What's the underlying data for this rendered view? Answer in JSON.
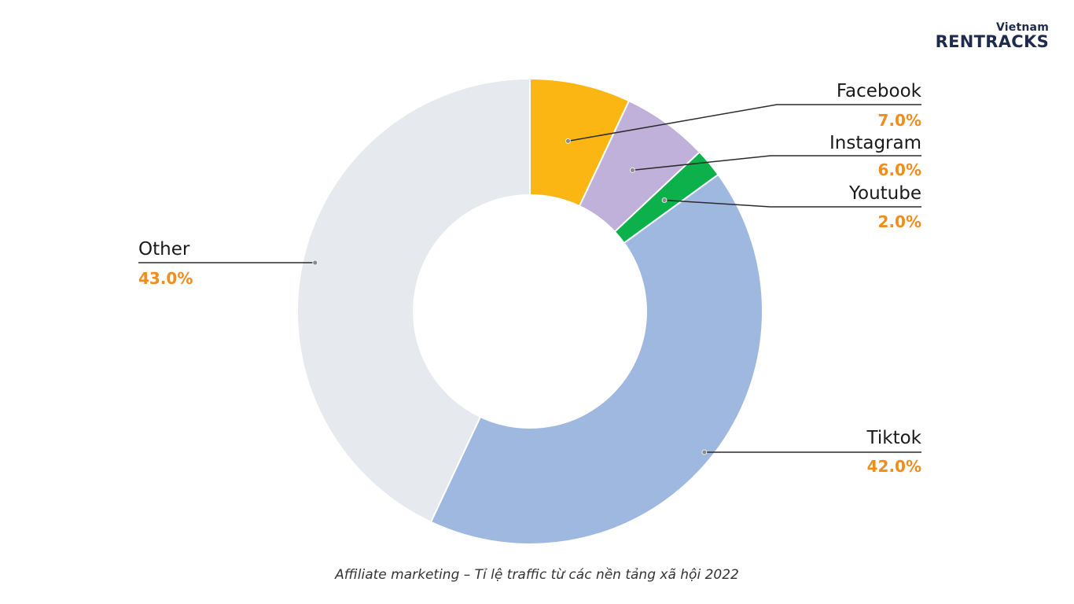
{
  "logo": {
    "top": "Vietnam",
    "main": "RENTRACKS"
  },
  "caption": "Affiliate marketing – Tỉ lệ traffic từ các nền tảng xã hội 2022",
  "colors": {
    "percent_text": "#f28c1b",
    "leader_line": "#2b2b2b"
  },
  "chart_data": {
    "type": "pie",
    "donut": true,
    "title": "",
    "slices": [
      {
        "name": "Facebook",
        "value": 7.0,
        "label": "7.0%",
        "color": "#fbb614"
      },
      {
        "name": "Instagram",
        "value": 6.0,
        "label": "6.0%",
        "color": "#bfb1d9"
      },
      {
        "name": "Youtube",
        "value": 2.0,
        "label": "2.0%",
        "color": "#0db14b"
      },
      {
        "name": "Tiktok",
        "value": 42.0,
        "label": "42.0%",
        "color": "#9fb8e0"
      },
      {
        "name": "Other",
        "value": 43.0,
        "label": "43.0%",
        "color": "#e6e9ed"
      }
    ]
  }
}
